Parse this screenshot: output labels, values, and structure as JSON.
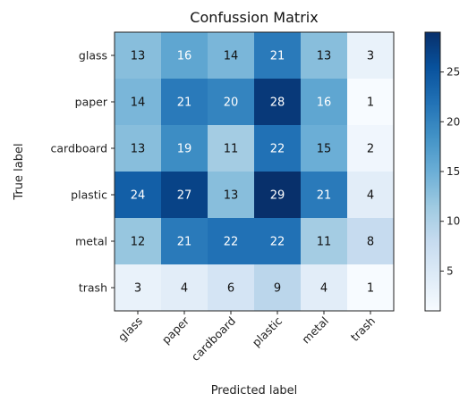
{
  "chart_data": {
    "type": "heatmap",
    "title": "Confussion Matrix",
    "xlabel": "Predicted label",
    "ylabel": "True label",
    "x_categories": [
      "glass",
      "paper",
      "cardboard",
      "plastic",
      "metal",
      "trash"
    ],
    "y_categories": [
      "glass",
      "paper",
      "cardboard",
      "plastic",
      "metal",
      "trash"
    ],
    "values": [
      [
        13,
        16,
        14,
        21,
        13,
        3
      ],
      [
        14,
        21,
        20,
        28,
        16,
        1
      ],
      [
        13,
        19,
        11,
        22,
        15,
        2
      ],
      [
        24,
        27,
        13,
        29,
        21,
        4
      ],
      [
        12,
        21,
        22,
        22,
        11,
        8
      ],
      [
        3,
        4,
        6,
        9,
        4,
        1
      ]
    ],
    "colormap": "Blues",
    "colorbar": {
      "range": [
        1,
        29
      ],
      "ticks": [
        5,
        10,
        15,
        20,
        25
      ],
      "tick_labels": [
        "5",
        "10",
        "15",
        "20",
        "25"
      ]
    },
    "grid": false,
    "legend": "right colorbar"
  }
}
